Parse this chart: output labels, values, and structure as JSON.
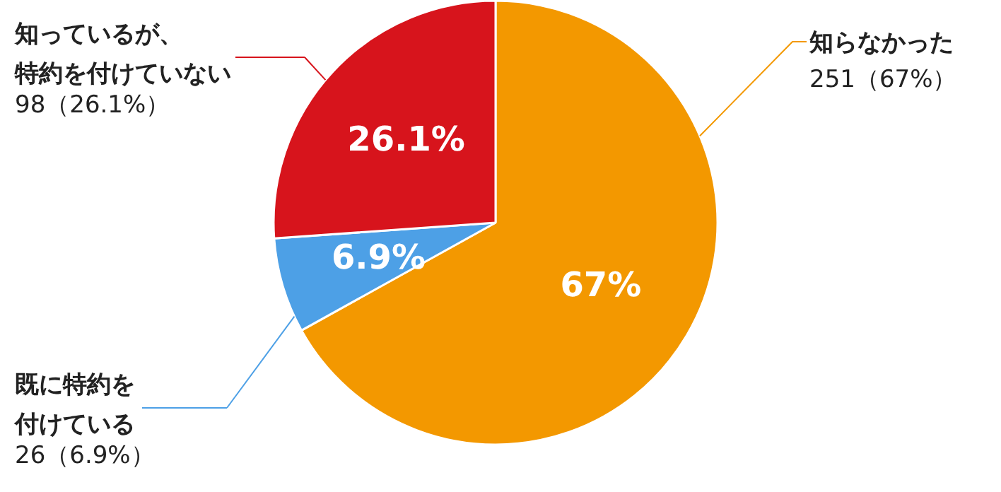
{
  "chart_data": {
    "type": "pie",
    "categories": [
      "知らなかった",
      "既に特約を付けている",
      "知っているが、特約を付けていない"
    ],
    "values": [
      251,
      26,
      98
    ],
    "colors": [
      "#f39800",
      "#4da0e6",
      "#d7141c"
    ],
    "value_labels": [
      "251（67%）",
      "26（6.9%）",
      "98（26.1%）"
    ],
    "annotations": [
      "67%",
      "6.9%",
      "26.1%"
    ]
  }
}
